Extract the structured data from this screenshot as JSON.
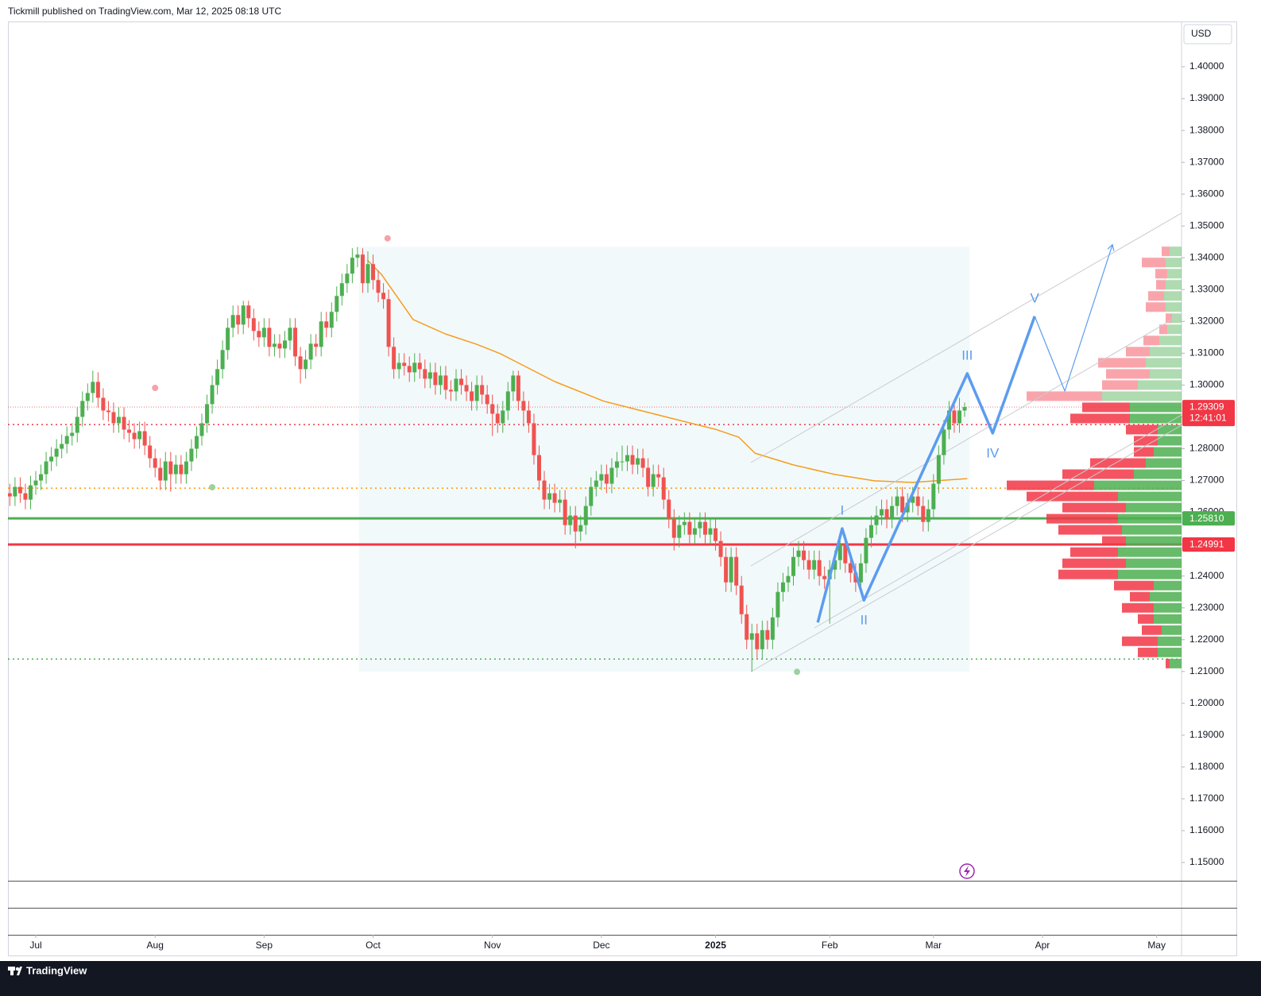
{
  "header": "Tickmill published on TradingView.com, Mar 12, 2025 08:18 UTC",
  "footer": "TradingView",
  "chart_data": {
    "type": "candlestick",
    "currency": "USD",
    "up_color": "#4caf50",
    "down_color": "#ef5350",
    "x": [
      -5,
      -4,
      -3,
      -2,
      -1,
      0,
      1,
      2,
      3,
      4,
      5,
      6,
      7,
      8,
      9,
      10,
      11,
      12,
      13,
      14,
      15,
      16,
      17,
      18,
      19,
      20,
      21,
      22,
      23,
      24,
      25,
      26,
      27,
      28,
      29,
      30,
      31,
      32,
      33,
      34,
      35,
      36,
      37,
      38,
      39,
      40,
      41,
      42,
      43,
      44,
      45,
      46,
      47,
      48,
      49,
      50,
      51,
      52,
      53,
      54,
      55,
      56,
      57,
      58,
      59,
      60,
      61,
      62,
      63,
      64,
      65,
      66,
      67,
      68,
      69,
      70,
      71,
      72,
      73,
      74,
      75,
      76,
      77,
      78,
      79,
      80,
      81,
      82,
      83,
      84,
      85,
      86,
      87,
      88,
      89,
      90,
      91,
      92,
      93,
      94,
      95,
      96,
      97,
      98,
      99,
      100,
      101,
      102,
      103,
      104,
      105,
      106,
      107,
      108,
      109,
      110,
      111,
      112,
      113,
      114,
      115,
      116,
      117,
      118,
      119,
      120,
      121,
      122,
      123,
      124,
      125,
      126,
      127,
      128,
      129,
      130,
      131,
      132,
      133,
      134,
      135,
      136,
      137,
      138,
      139,
      140,
      141,
      142,
      143,
      144,
      145,
      146,
      147,
      148,
      149,
      150,
      151,
      152,
      153,
      154,
      155,
      156,
      157,
      158,
      159,
      160,
      161,
      162,
      163,
      164,
      165,
      166,
      167,
      168,
      169,
      170,
      171,
      172,
      173,
      174,
      175,
      176,
      177,
      178,
      179
    ],
    "open": [
      1.266,
      1.265,
      1.268,
      1.266,
      1.264,
      1.2685,
      1.27,
      1.272,
      1.276,
      1.2775,
      1.28,
      1.2815,
      1.284,
      1.285,
      1.29,
      1.295,
      1.2975,
      1.301,
      1.296,
      1.292,
      1.2915,
      1.288,
      1.29,
      1.286,
      1.285,
      1.283,
      1.2855,
      1.281,
      1.277,
      1.274,
      1.27,
      1.276,
      1.272,
      1.275,
      1.272,
      1.276,
      1.28,
      1.284,
      1.288,
      1.294,
      1.3,
      1.305,
      1.311,
      1.318,
      1.322,
      1.319,
      1.325,
      1.321,
      1.317,
      1.315,
      1.318,
      1.312,
      1.313,
      1.3115,
      1.314,
      1.318,
      1.309,
      1.305,
      1.308,
      1.313,
      1.312,
      1.32,
      1.318,
      1.323,
      1.328,
      1.332,
      1.335,
      1.34,
      1.341,
      1.332,
      1.338,
      1.333,
      1.329,
      1.327,
      1.312,
      1.305,
      1.307,
      1.306,
      1.304,
      1.307,
      1.305,
      1.302,
      1.304,
      1.3,
      1.303,
      1.2985,
      1.298,
      1.302,
      1.3,
      1.298,
      1.295,
      1.3,
      1.297,
      1.294,
      1.291,
      1.288,
      1.292,
      1.298,
      1.303,
      1.295,
      1.292,
      1.288,
      1.278,
      1.27,
      1.264,
      1.266,
      1.263,
      1.264,
      1.256,
      1.259,
      1.254,
      1.256,
      1.262,
      1.268,
      1.27,
      1.272,
      1.269,
      1.274,
      1.276,
      1.276,
      1.278,
      1.275,
      1.277,
      1.274,
      1.268,
      1.272,
      1.271,
      1.264,
      1.258,
      1.252,
      1.256,
      1.257,
      1.253,
      1.255,
      1.257,
      1.253,
      1.255,
      1.251,
      1.246,
      1.238,
      1.246,
      1.237,
      1.228,
      1.22,
      1.222,
      1.217,
      1.223,
      1.22,
      1.227,
      1.235,
      1.238,
      1.24,
      1.246,
      1.248,
      1.245,
      1.242,
      1.245,
      1.24,
      1.239,
      1.242,
      1.245,
      1.25,
      1.244,
      1.241,
      1.238,
      1.244,
      1.252,
      1.256,
      1.259,
      1.261,
      1.258,
      1.262,
      1.265,
      1.26,
      1.263,
      1.265,
      1.262,
      1.257,
      1.261,
      1.269,
      1.278,
      1.286,
      1.292,
      1.288,
      1.292
    ],
    "high": [
      1.269,
      1.271,
      1.271,
      1.269,
      1.2715,
      1.273,
      1.275,
      1.279,
      1.2805,
      1.283,
      1.2845,
      1.287,
      1.288,
      1.293,
      1.298,
      1.3005,
      1.3045,
      1.304,
      1.299,
      1.295,
      1.2945,
      1.293,
      1.293,
      1.289,
      1.288,
      1.2885,
      1.2885,
      1.284,
      1.28,
      1.277,
      1.279,
      1.279,
      1.278,
      1.278,
      1.279,
      1.283,
      1.287,
      1.291,
      1.297,
      1.303,
      1.308,
      1.314,
      1.321,
      1.325,
      1.325,
      1.3265,
      1.3265,
      1.324,
      1.32,
      1.321,
      1.321,
      1.316,
      1.316,
      1.317,
      1.321,
      1.321,
      1.312,
      1.311,
      1.316,
      1.316,
      1.323,
      1.323,
      1.326,
      1.331,
      1.335,
      1.338,
      1.343,
      1.3434,
      1.343,
      1.342,
      1.341,
      1.336,
      1.332,
      1.33,
      1.315,
      1.31,
      1.31,
      1.309,
      1.31,
      1.31,
      1.308,
      1.307,
      1.307,
      1.306,
      1.306,
      1.3015,
      1.305,
      1.305,
      1.303,
      1.301,
      1.303,
      1.303,
      1.3,
      1.297,
      1.294,
      1.295,
      1.301,
      1.3045,
      1.3045,
      1.298,
      1.295,
      1.291,
      1.281,
      1.273,
      1.269,
      1.269,
      1.267,
      1.267,
      1.262,
      1.262,
      1.259,
      1.265,
      1.271,
      1.273,
      1.275,
      1.275,
      1.277,
      1.279,
      1.281,
      1.281,
      1.281,
      1.28,
      1.28,
      1.277,
      1.275,
      1.275,
      1.274,
      1.267,
      1.261,
      1.259,
      1.26,
      1.26,
      1.258,
      1.26,
      1.26,
      1.258,
      1.258,
      1.254,
      1.249,
      1.249,
      1.249,
      1.24,
      1.231,
      1.225,
      1.225,
      1.226,
      1.226,
      1.23,
      1.238,
      1.241,
      1.243,
      1.249,
      1.251,
      1.251,
      1.248,
      1.248,
      1.248,
      1.243,
      1.245,
      1.248,
      1.253,
      1.253,
      1.247,
      1.244,
      1.247,
      1.255,
      1.259,
      1.262,
      1.264,
      1.264,
      1.265,
      1.268,
      1.268,
      1.266,
      1.268,
      1.268,
      1.265,
      1.264,
      1.272,
      1.281,
      1.289,
      1.295,
      1.295,
      1.296,
      1.2945
    ],
    "low": [
      1.262,
      1.262,
      1.263,
      1.261,
      1.261,
      1.2655,
      1.267,
      1.269,
      1.273,
      1.2745,
      1.277,
      1.2785,
      1.281,
      1.282,
      1.287,
      1.292,
      1.2945,
      1.293,
      1.289,
      1.2885,
      1.285,
      1.285,
      1.283,
      1.282,
      1.28,
      1.28,
      1.278,
      1.274,
      1.271,
      1.267,
      1.267,
      1.2665,
      1.269,
      1.269,
      1.269,
      1.273,
      1.277,
      1.281,
      1.285,
      1.291,
      1.297,
      1.302,
      1.308,
      1.315,
      1.316,
      1.316,
      1.318,
      1.314,
      1.312,
      1.312,
      1.309,
      1.309,
      1.3085,
      1.3085,
      1.311,
      1.306,
      1.3005,
      1.302,
      1.305,
      1.309,
      1.309,
      1.315,
      1.315,
      1.32,
      1.325,
      1.329,
      1.332,
      1.337,
      1.329,
      1.329,
      1.33,
      1.326,
      1.324,
      1.309,
      1.302,
      1.302,
      1.303,
      1.301,
      1.301,
      1.302,
      1.299,
      1.299,
      1.297,
      1.297,
      1.2955,
      1.295,
      1.295,
      1.297,
      1.295,
      1.292,
      1.292,
      1.294,
      1.291,
      1.284,
      1.285,
      1.285,
      1.289,
      1.295,
      1.292,
      1.287,
      1.285,
      1.275,
      1.267,
      1.261,
      1.261,
      1.26,
      1.26,
      1.253,
      1.253,
      1.2487,
      1.251,
      1.253,
      1.259,
      1.265,
      1.267,
      1.266,
      1.266,
      1.271,
      1.273,
      1.273,
      1.272,
      1.272,
      1.271,
      1.265,
      1.265,
      1.268,
      1.261,
      1.255,
      1.248,
      1.249,
      1.253,
      1.25,
      1.25,
      1.252,
      1.25,
      1.25,
      1.248,
      1.243,
      1.235,
      1.235,
      1.234,
      1.225,
      1.217,
      1.21,
      1.214,
      1.214,
      1.217,
      1.217,
      1.224,
      1.232,
      1.235,
      1.237,
      1.243,
      1.242,
      1.239,
      1.239,
      1.237,
      1.236,
      1.225,
      1.239,
      1.242,
      1.241,
      1.238,
      1.235,
      1.235,
      1.241,
      1.249,
      1.253,
      1.256,
      1.255,
      1.255,
      1.259,
      1.257,
      1.257,
      1.26,
      1.259,
      1.254,
      1.254,
      1.258,
      1.266,
      1.275,
      1.283,
      1.285,
      1.285,
      1.29
    ],
    "close": [
      1.265,
      1.268,
      1.266,
      1.264,
      1.2685,
      1.27,
      1.272,
      1.276,
      1.2775,
      1.28,
      1.2815,
      1.284,
      1.285,
      1.29,
      1.295,
      1.2975,
      1.301,
      1.296,
      1.292,
      1.2915,
      1.288,
      1.29,
      1.286,
      1.285,
      1.283,
      1.2855,
      1.281,
      1.277,
      1.274,
      1.27,
      1.276,
      1.272,
      1.275,
      1.272,
      1.276,
      1.28,
      1.284,
      1.288,
      1.294,
      1.3,
      1.305,
      1.311,
      1.318,
      1.322,
      1.319,
      1.325,
      1.321,
      1.317,
      1.315,
      1.318,
      1.312,
      1.313,
      1.3115,
      1.314,
      1.318,
      1.309,
      1.305,
      1.308,
      1.313,
      1.312,
      1.32,
      1.318,
      1.323,
      1.328,
      1.332,
      1.335,
      1.34,
      1.341,
      1.332,
      1.338,
      1.333,
      1.329,
      1.327,
      1.312,
      1.305,
      1.307,
      1.306,
      1.304,
      1.307,
      1.305,
      1.302,
      1.304,
      1.3,
      1.303,
      1.2985,
      1.298,
      1.302,
      1.3,
      1.298,
      1.295,
      1.3,
      1.297,
      1.294,
      1.291,
      1.288,
      1.292,
      1.298,
      1.303,
      1.295,
      1.292,
      1.288,
      1.278,
      1.27,
      1.264,
      1.266,
      1.263,
      1.264,
      1.256,
      1.259,
      1.254,
      1.256,
      1.262,
      1.268,
      1.27,
      1.272,
      1.269,
      1.274,
      1.276,
      1.276,
      1.278,
      1.275,
      1.277,
      1.274,
      1.268,
      1.272,
      1.271,
      1.264,
      1.258,
      1.252,
      1.256,
      1.257,
      1.253,
      1.255,
      1.257,
      1.253,
      1.255,
      1.251,
      1.246,
      1.238,
      1.246,
      1.237,
      1.228,
      1.22,
      1.222,
      1.217,
      1.223,
      1.22,
      1.227,
      1.235,
      1.238,
      1.24,
      1.246,
      1.248,
      1.245,
      1.242,
      1.245,
      1.24,
      1.239,
      1.242,
      1.245,
      1.25,
      1.244,
      1.241,
      1.238,
      1.244,
      1.252,
      1.256,
      1.259,
      1.261,
      1.258,
      1.262,
      1.265,
      1.26,
      1.263,
      1.265,
      1.262,
      1.257,
      1.261,
      1.269,
      1.278,
      1.286,
      1.292,
      1.288,
      1.292,
      1.29309
    ],
    "xlim": [
      -5.36,
      220.8
    ],
    "xticks": [
      {
        "value": 0,
        "label": "Jul"
      },
      {
        "value": 23,
        "label": "Aug"
      },
      {
        "value": 44,
        "label": "Sep"
      },
      {
        "value": 65,
        "label": "Oct"
      },
      {
        "value": 88,
        "label": "Nov"
      },
      {
        "value": 109,
        "label": "Dec"
      },
      {
        "value": 131,
        "label": "2025",
        "bold": true
      },
      {
        "value": 153,
        "label": "Feb"
      },
      {
        "value": 173,
        "label": "Mar"
      },
      {
        "value": 194,
        "label": "Apr"
      },
      {
        "value": 216,
        "label": "May"
      }
    ],
    "ylim": [
      1.14426,
      1.41424
    ],
    "yticks": [
      {
        "value": 1.15,
        "label": "1.15000"
      },
      {
        "value": 1.16,
        "label": "1.16000"
      },
      {
        "value": 1.17,
        "label": "1.17000"
      },
      {
        "value": 1.18,
        "label": "1.18000"
      },
      {
        "value": 1.19,
        "label": "1.19000"
      },
      {
        "value": 1.2,
        "label": "1.20000"
      },
      {
        "value": 1.21,
        "label": "1.21000"
      },
      {
        "value": 1.22,
        "label": "1.22000"
      },
      {
        "value": 1.23,
        "label": "1.23000"
      },
      {
        "value": 1.24,
        "label": "1.24000"
      },
      {
        "value": 1.25,
        "label": "1.25000"
      },
      {
        "value": 1.26,
        "label": "1.26000"
      },
      {
        "value": 1.27,
        "label": "1.27000"
      },
      {
        "value": 1.28,
        "label": "1.28000"
      },
      {
        "value": 1.29,
        "label": "1.29000"
      },
      {
        "value": 1.3,
        "label": "1.30000"
      },
      {
        "value": 1.31,
        "label": "1.31000"
      },
      {
        "value": 1.32,
        "label": "1.32000"
      },
      {
        "value": 1.33,
        "label": "1.33000"
      },
      {
        "value": 1.34,
        "label": "1.34000"
      },
      {
        "value": 1.35,
        "label": "1.35000"
      },
      {
        "value": 1.36,
        "label": "1.36000"
      },
      {
        "value": 1.37,
        "label": "1.37000"
      },
      {
        "value": 1.38,
        "label": "1.38000"
      },
      {
        "value": 1.39,
        "label": "1.39000"
      },
      {
        "value": 1.4,
        "label": "1.40000"
      }
    ],
    "grid": false,
    "range_box": {
      "color": "#e6f4f8",
      "x": [
        62.3,
        180
      ],
      "y": [
        1.21,
        1.3434
      ]
    },
    "moving_average": {
      "color": "#f59d1c",
      "x": [
        63.9,
        66.6,
        72.7,
        78.9,
        85,
        89.6,
        100,
        109.5,
        120,
        131,
        135.5,
        138.6,
        146,
        154,
        161.6,
        169,
        179.5
      ],
      "values": [
        1.3393,
        1.3348,
        1.3206,
        1.3161,
        1.3128,
        1.3098,
        1.3011,
        1.2949,
        1.2906,
        1.2861,
        1.2836,
        1.2786,
        1.2749,
        1.2719,
        1.2699,
        1.2694,
        1.2706
      ]
    },
    "levels": [
      {
        "value": 1.2581,
        "label": "1.25810",
        "color": "#4caf50",
        "style": "solid"
      },
      {
        "value": 1.24991,
        "label": "1.24991",
        "color": "#f23645",
        "style": "solid"
      },
      {
        "value": 1.2876,
        "color": "#f23645",
        "style": "dotted"
      },
      {
        "value": 1.2676,
        "color": "#ff9800",
        "style": "dotted"
      },
      {
        "value": 1.2139,
        "color": "#4caf50",
        "style": "dotted"
      }
    ],
    "last_price": {
      "value": 1.29309,
      "label": "1.29309",
      "countdown": "12:41:01",
      "color": "#f23645"
    },
    "waves": {
      "color": "#5b9cf0",
      "x": [
        150.7,
        155.4,
        159.6,
        179.5,
        184.4,
        192.5
      ],
      "values": [
        1.2254,
        1.2549,
        1.2324,
        1.3036,
        1.2849,
        1.3216
      ],
      "labels": [
        null,
        "I",
        "II",
        "III",
        "IV",
        "V"
      ]
    },
    "projection": {
      "color": "#5b9cf0",
      "x": [
        192.5,
        198.3,
        207.5
      ],
      "values": [
        1.3216,
        1.2981,
        1.3441
      ]
    },
    "pivots": {
      "x": [
        67.8,
        23,
        34,
        146.7
      ],
      "values": [
        1.3461,
        1.2991,
        1.2679,
        1.2099
      ],
      "colors": [
        "#f7a1a8",
        "#f7a1a8",
        "#9ed19f",
        "#9ed19f"
      ]
    },
    "volume_profile": {
      "up_color": "#4caf50",
      "down_color": "#f23645",
      "step": 0.0035,
      "levels": [
        1.342,
        1.3385,
        1.335,
        1.3315,
        1.328,
        1.3245,
        1.321,
        1.3175,
        1.314,
        1.3105,
        1.307,
        1.3035,
        1.3,
        1.2965,
        1.293,
        1.2895,
        1.286,
        1.2825,
        1.279,
        1.2755,
        1.272,
        1.2685,
        1.265,
        1.2615,
        1.258,
        1.2545,
        1.251,
        1.2475,
        1.244,
        1.2405,
        1.237,
        1.2335,
        1.23,
        1.2265,
        1.223,
        1.2195,
        1.216,
        1.2125
      ],
      "up": [
        15,
        20,
        18,
        20,
        22,
        20,
        12,
        18,
        28,
        40,
        45,
        40,
        55,
        100,
        65,
        65,
        30,
        30,
        35,
        45,
        60,
        110,
        80,
        70,
        80,
        75,
        70,
        80,
        70,
        80,
        35,
        40,
        35,
        35,
        25,
        30,
        30,
        15
      ],
      "down": [
        10,
        30,
        15,
        12,
        20,
        25,
        8,
        10,
        20,
        30,
        60,
        55,
        45,
        95,
        60,
        75,
        40,
        30,
        25,
        70,
        90,
        110,
        115,
        80,
        90,
        80,
        30,
        60,
        80,
        75,
        50,
        25,
        40,
        20,
        25,
        45,
        25,
        5
      ]
    }
  }
}
